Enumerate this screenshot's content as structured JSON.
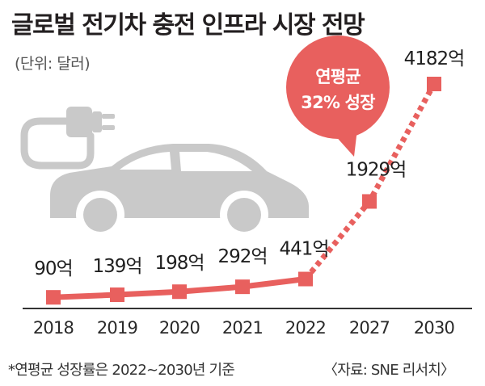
{
  "header": {
    "title": "글로벌 전기차 충전 인프라 시장 전망",
    "unit": "(단위: 달러)"
  },
  "callout": {
    "line1": "연평균",
    "line2": "32% 성장"
  },
  "footer": {
    "footnote": "*연평균 성장률은 2022~2030년 기준",
    "source": "〈자료: SNE 리서치〉"
  },
  "colors": {
    "accent": "#e8605e",
    "car": "#c9c9c9",
    "axis": "#333333"
  },
  "icon": "electric-car-with-plug-icon",
  "chart_data": {
    "type": "line",
    "categories": [
      "2018",
      "2019",
      "2020",
      "2021",
      "2022",
      "2027",
      "2030"
    ],
    "values": [
      90,
      139,
      198,
      292,
      441,
      1929,
      4182
    ],
    "value_labels": [
      "90억",
      "139억",
      "198억",
      "292억",
      "441억",
      "1929억",
      "4182억"
    ],
    "projected_from_index": 4,
    "solid_segment": [
      "2018",
      "2022"
    ],
    "dotted_segment": [
      "2022",
      "2030"
    ],
    "ylim": [
      0,
      4182
    ]
  }
}
